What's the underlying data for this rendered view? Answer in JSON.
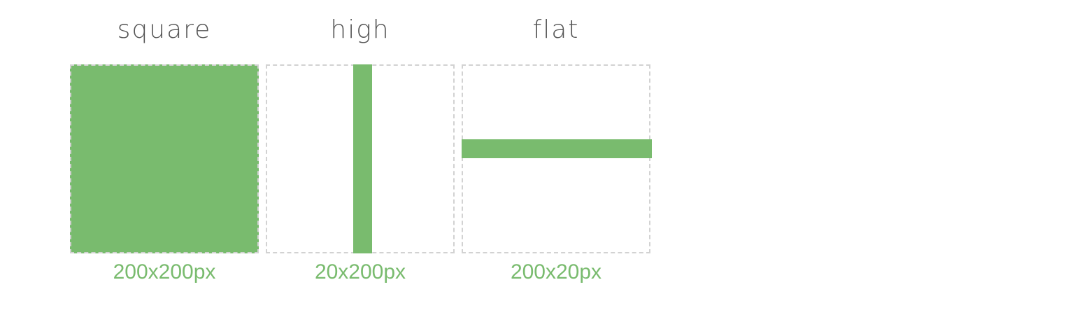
{
  "colors": {
    "fill": "#79bb6e",
    "dashed_border": "#d2d2d2",
    "title_text": "#555555",
    "size_text": "#79bb6e"
  },
  "panels": [
    {
      "title": "square",
      "size": "200x200px"
    },
    {
      "title": "high",
      "size": "20x200px"
    },
    {
      "title": "flat",
      "size": "200x20px"
    }
  ]
}
